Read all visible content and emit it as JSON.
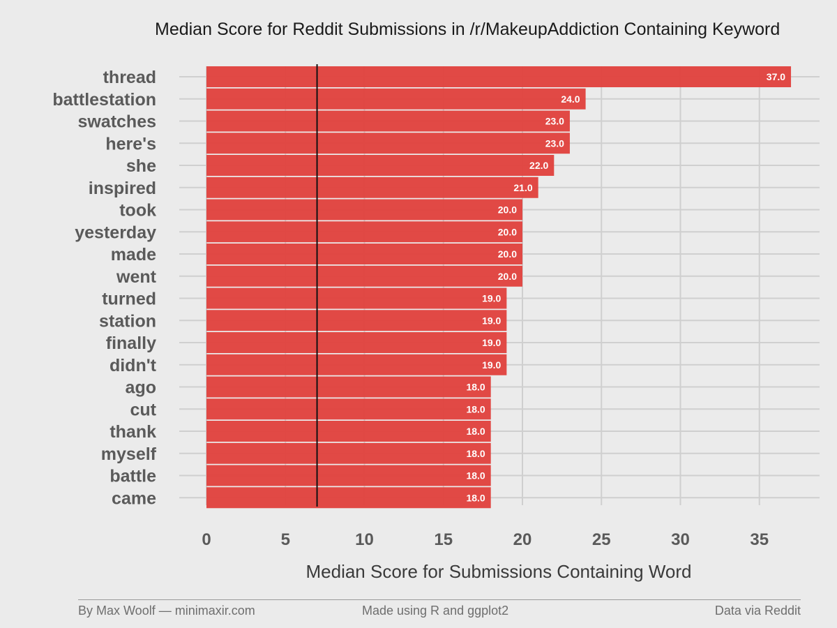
{
  "chart_data": {
    "type": "bar",
    "orientation": "horizontal",
    "title": "Median Score for Reddit Submissions in /r/MakeupAddiction Containing Keyword",
    "xlabel": "Median Score for Submissions Containing Word",
    "ylabel": "",
    "categories": [
      "thread",
      "battlestation",
      "swatches",
      "here's",
      "she",
      "inspired",
      "took",
      "yesterday",
      "made",
      "went",
      "turned",
      "station",
      "finally",
      "didn't",
      "ago",
      "cut",
      "thank",
      "myself",
      "battle",
      "came"
    ],
    "values": [
      37.0,
      24.0,
      23.0,
      23.0,
      22.0,
      21.0,
      20.0,
      20.0,
      20.0,
      20.0,
      19.0,
      19.0,
      19.0,
      19.0,
      18.0,
      18.0,
      18.0,
      18.0,
      18.0,
      18.0
    ],
    "value_labels": [
      "37.0",
      "24.0",
      "23.0",
      "23.0",
      "22.0",
      "21.0",
      "20.0",
      "20.0",
      "20.0",
      "20.0",
      "19.0",
      "19.0",
      "19.0",
      "19.0",
      "18.0",
      "18.0",
      "18.0",
      "18.0",
      "18.0",
      "18.0"
    ],
    "xlim": [
      0,
      37
    ],
    "x_ticks": [
      0,
      5,
      10,
      15,
      20,
      25,
      30,
      35
    ],
    "reference_line": 7,
    "grid": true,
    "legend": "none",
    "bar_color": "#e0403c",
    "background_color": "#ebebeb"
  },
  "footer": {
    "left": "By Max Woolf — minimaxir.com",
    "center": "Made using R and ggplot2",
    "right": "Data via Reddit"
  }
}
